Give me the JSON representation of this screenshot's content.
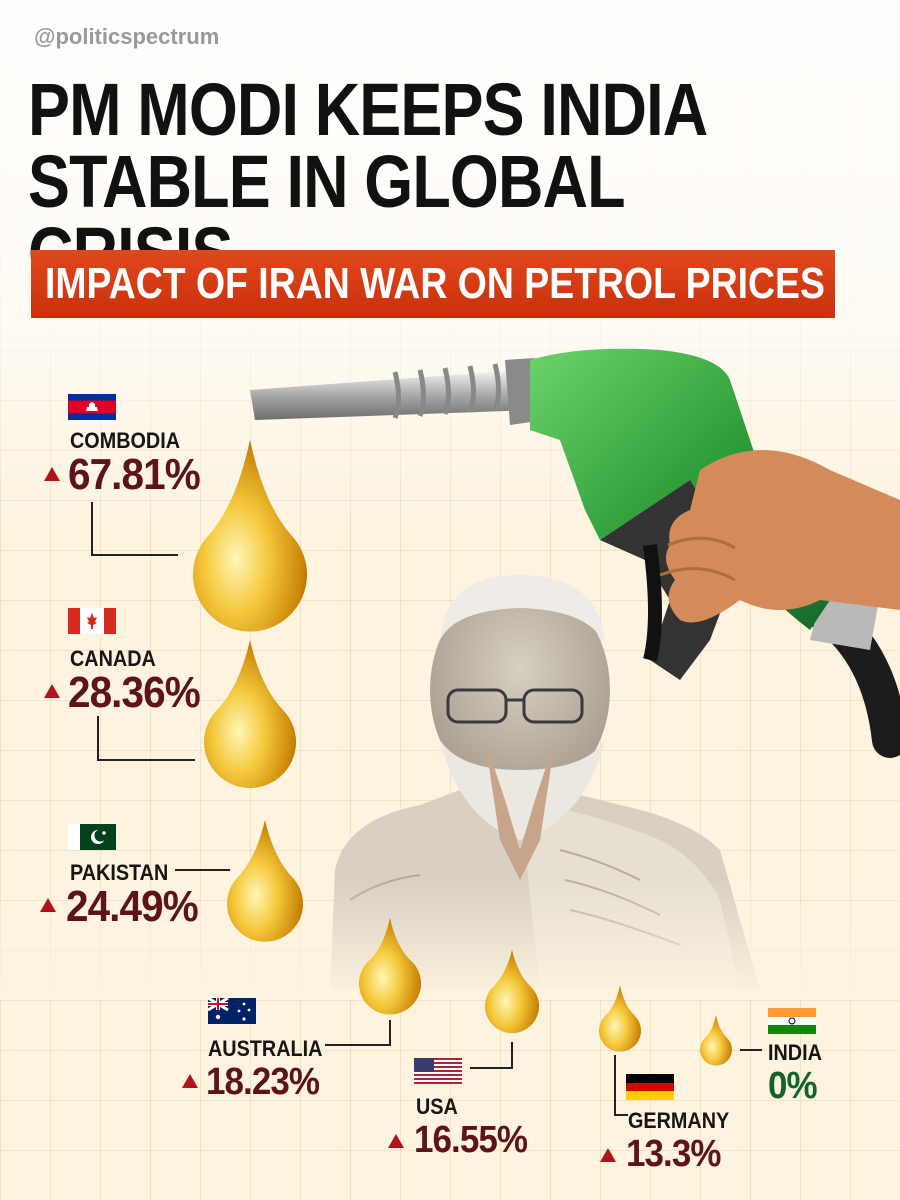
{
  "handle": "@politicspectrum",
  "headline": {
    "line1": "PM MODI KEEPS INDIA",
    "line2": "STABLE IN GLOBAL CRISIS"
  },
  "banner": "IMPACT OF IRAN WAR ON PETROL PRICES",
  "colors": {
    "increase": "#b0141a",
    "percent": "#5c1418",
    "india_percent": "#14622d",
    "banner": "#d63b14",
    "nozzle": "#2f9e3b",
    "drop": "#e8a912"
  },
  "countries": [
    {
      "name": "COMBODIA",
      "change": "67.81%",
      "indicator": "up-triangle",
      "flag": "cambodia-flag"
    },
    {
      "name": "CANADA",
      "change": "28.36%",
      "indicator": "up-triangle",
      "flag": "canada-flag"
    },
    {
      "name": "PAKISTAN",
      "change": "24.49%",
      "indicator": "up-triangle",
      "flag": "pakistan-flag"
    },
    {
      "name": "AUSTRALIA",
      "change": "18.23%",
      "indicator": "up-triangle",
      "flag": "australia-flag"
    },
    {
      "name": "USA",
      "change": "16.55%",
      "indicator": "up-triangle",
      "flag": "usa-flag"
    },
    {
      "name": "GERMANY",
      "change": "13.3%",
      "indicator": "up-triangle",
      "flag": "germany-flag"
    },
    {
      "name": "INDIA",
      "change": "0%",
      "indicator": "none",
      "flag": "india-flag"
    }
  ]
}
